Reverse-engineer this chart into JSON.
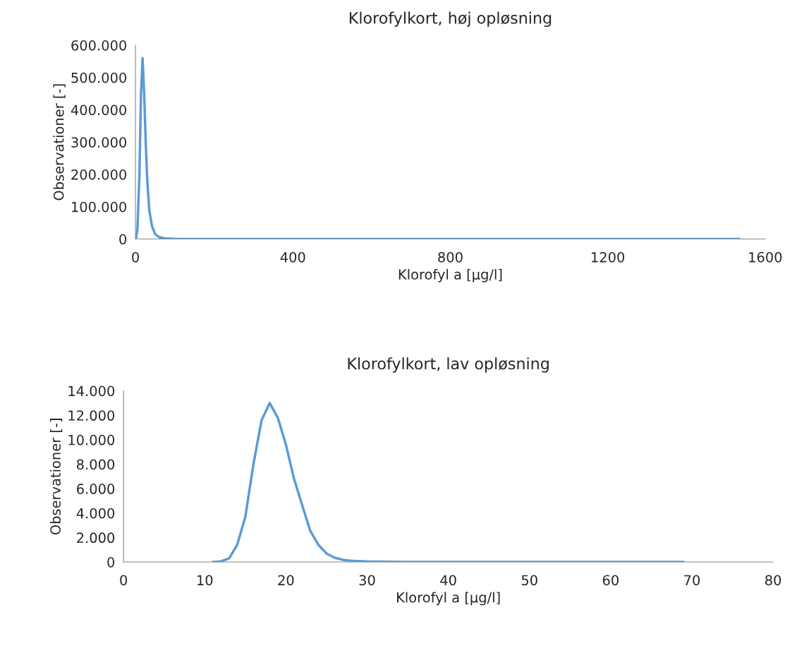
{
  "chart_data": [
    {
      "type": "line",
      "title": "Klorofylkort, høj opløsning",
      "xlabel": "Klorofyl a [µg/l]",
      "ylabel": "Observationer [-]",
      "x": [
        1,
        5,
        10,
        14,
        18,
        22,
        26,
        30,
        35,
        42,
        50,
        60,
        75,
        100,
        150,
        300,
        600,
        1000,
        1535
      ],
      "series": [
        {
          "color": "#5b9bd5",
          "values": [
            0,
            30000,
            200000,
            450000,
            560000,
            450000,
            300000,
            180000,
            90000,
            40000,
            15000,
            6000,
            2000,
            0,
            0,
            0,
            0,
            0,
            0
          ]
        }
      ],
      "xlim": [
        0,
        1600
      ],
      "xticks": [
        0,
        400,
        800,
        1200,
        1600
      ],
      "ylim": [
        0,
        600000
      ],
      "yticks": [
        {
          "value": 0,
          "label": "0"
        },
        {
          "value": 100000,
          "label": "100.000"
        },
        {
          "value": 200000,
          "label": "200.000"
        },
        {
          "value": 300000,
          "label": "300.000"
        },
        {
          "value": 400000,
          "label": "400.000"
        },
        {
          "value": 500000,
          "label": "500.000"
        },
        {
          "value": 600000,
          "label": "600.000"
        }
      ],
      "grid": false,
      "line_style": "solid",
      "marker": "none"
    },
    {
      "type": "line",
      "title": "Klorofylkort, lav opløsning",
      "xlabel": "Klorofyl a [µg/l]",
      "ylabel": "Observationer [-]",
      "x": [
        11,
        12,
        13,
        14,
        15,
        16,
        17,
        18,
        19,
        20,
        21,
        22,
        23,
        24,
        25,
        26,
        27,
        28,
        30,
        35,
        40,
        50,
        60,
        69
      ],
      "series": [
        {
          "color": "#5b9bd5",
          "values": [
            0,
            50,
            300,
            1400,
            3700,
            8000,
            11600,
            13000,
            11800,
            9600,
            6800,
            4650,
            2550,
            1400,
            700,
            350,
            180,
            100,
            40,
            10,
            0,
            0,
            0,
            0
          ]
        }
      ],
      "xlim": [
        0,
        80
      ],
      "xticks": [
        0,
        10,
        20,
        30,
        40,
        50,
        60,
        70,
        80
      ],
      "ylim": [
        0,
        14000
      ],
      "yticks": [
        {
          "value": 0,
          "label": "0"
        },
        {
          "value": 2000,
          "label": "2.000"
        },
        {
          "value": 4000,
          "label": "4.000"
        },
        {
          "value": 6000,
          "label": "6.000"
        },
        {
          "value": 8000,
          "label": "8.000"
        },
        {
          "value": 10000,
          "label": "10.000"
        },
        {
          "value": 12000,
          "label": "12.000"
        },
        {
          "value": 14000,
          "label": "14.000"
        }
      ],
      "grid": false,
      "line_style": "solid",
      "marker": "none"
    }
  ]
}
